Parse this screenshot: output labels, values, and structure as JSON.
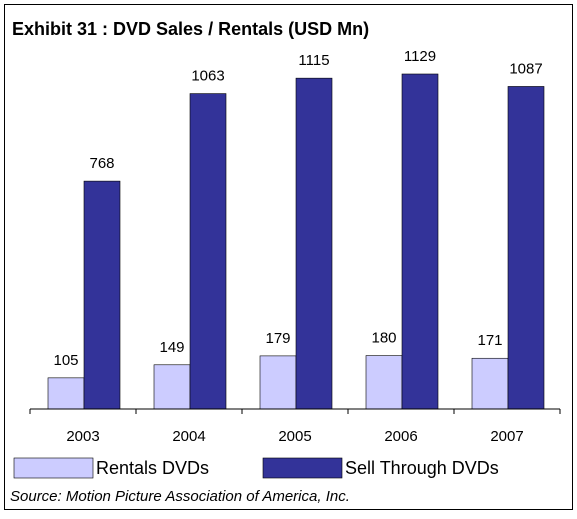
{
  "chart_data": {
    "type": "bar",
    "title": "Exhibit 31 : DVD Sales / Rentals (USD Mn)",
    "categories": [
      "2003",
      "2004",
      "2005",
      "2006",
      "2007"
    ],
    "series": [
      {
        "name": "Rentals DVDs",
        "color": "#ccccff",
        "values": [
          105,
          149,
          179,
          180,
          171
        ]
      },
      {
        "name": "Sell Through DVDs",
        "color": "#333399",
        "values": [
          768,
          1063,
          1115,
          1129,
          1087
        ]
      }
    ],
    "source": "Source:  Motion Picture Association of America, Inc."
  }
}
